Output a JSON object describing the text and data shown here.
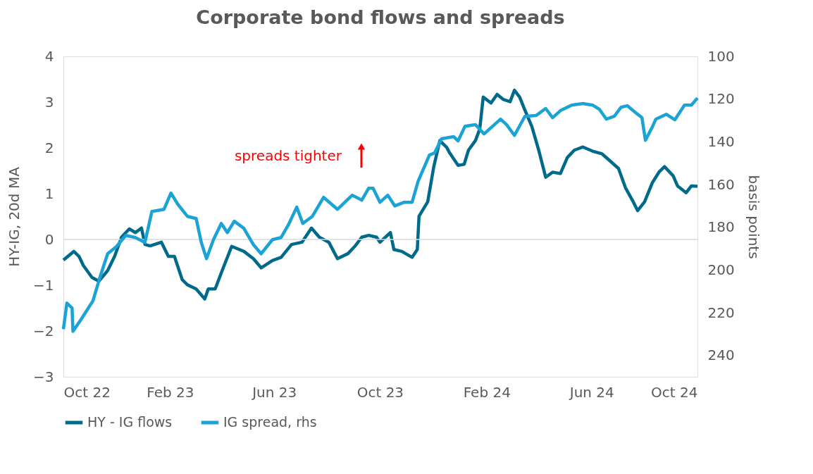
{
  "chart_data": {
    "type": "line",
    "title": "Corporate  bond flows and spreads",
    "ylabel": "HY-IG, 20d MA",
    "y2label": "basis points",
    "annotations": [
      "spreads tighter"
    ],
    "xlim": [
      "2022-10-01",
      "2024-10-01"
    ],
    "xticks": [
      {
        "value": "2022-10-01",
        "label": "Oct 22"
      },
      {
        "value": "2023-02-01",
        "label": "Feb 23"
      },
      {
        "value": "2023-06-01",
        "label": "Jun 23"
      },
      {
        "value": "2023-10-01",
        "label": "Oct 23"
      },
      {
        "value": "2024-02-01",
        "label": "Feb 24"
      },
      {
        "value": "2024-06-01",
        "label": "Jun 24"
      },
      {
        "value": "2024-10-01",
        "label": "Oct 24"
      }
    ],
    "ylim": [
      -3,
      4
    ],
    "yticks": [
      -3,
      -2,
      -1,
      0,
      1,
      2,
      3,
      4
    ],
    "y2lim": [
      250,
      100
    ],
    "y2ticks": [
      100,
      120,
      140,
      160,
      180,
      200,
      220,
      240
    ],
    "ref_lines": [
      {
        "axis": "y",
        "value": 0,
        "label": null,
        "color": "#d9d9d9"
      }
    ],
    "grid": false,
    "legend": "bottom",
    "line_style": "solid",
    "marker": "none",
    "series": [
      {
        "name": "HY - IG flows",
        "color": "#006a8a",
        "x": [
          "2022-10-01",
          "2022-10-13",
          "2022-10-19",
          "2022-10-24",
          "2022-11-03",
          "2022-11-11",
          "2022-11-21",
          "2022-11-29",
          "2022-12-07",
          "2022-12-16",
          "2022-12-23",
          "2022-12-30",
          "2023-01-03",
          "2023-01-09",
          "2023-01-22",
          "2023-01-30",
          "2023-02-06",
          "2023-02-15",
          "2023-02-21",
          "2023-03-03",
          "2023-03-13",
          "2023-03-17",
          "2023-03-25",
          "2023-04-02",
          "2023-04-13",
          "2023-04-27",
          "2023-05-08",
          "2023-05-17",
          "2023-05-30",
          "2023-06-09",
          "2023-06-21",
          "2023-07-03",
          "2023-07-14",
          "2023-07-23",
          "2023-08-03",
          "2023-08-13",
          "2023-08-25",
          "2023-09-02",
          "2023-09-10",
          "2023-09-18",
          "2023-09-27",
          "2023-10-01",
          "2023-10-13",
          "2023-10-17",
          "2023-10-26",
          "2023-11-07",
          "2023-11-13",
          "2023-11-15",
          "2023-11-25",
          "2023-12-02",
          "2023-12-09",
          "2023-12-17",
          "2023-12-20",
          "2023-12-30",
          "2024-01-06",
          "2024-01-11",
          "2024-01-19",
          "2024-01-24",
          "2024-01-28",
          "2024-02-06",
          "2024-02-13",
          "2024-02-20",
          "2024-02-28",
          "2024-03-04",
          "2024-03-10",
          "2024-03-16",
          "2024-03-24",
          "2024-04-01",
          "2024-04-09",
          "2024-04-17",
          "2024-04-26",
          "2024-05-04",
          "2024-05-12",
          "2024-05-22",
          "2024-06-02",
          "2024-06-13",
          "2024-06-22",
          "2024-07-02",
          "2024-07-10",
          "2024-07-19",
          "2024-07-24",
          "2024-08-01",
          "2024-08-10",
          "2024-08-18",
          "2024-08-24",
          "2024-09-03",
          "2024-09-08",
          "2024-09-18",
          "2024-09-24",
          "2024-10-01"
        ],
        "values": [
          -0.45,
          -0.26,
          -0.37,
          -0.57,
          -0.83,
          -0.91,
          -0.68,
          -0.37,
          0.05,
          0.23,
          0.15,
          0.25,
          -0.11,
          -0.14,
          -0.06,
          -0.37,
          -0.37,
          -0.88,
          -0.99,
          -1.08,
          -1.3,
          -1.08,
          -1.08,
          -0.68,
          -0.15,
          -0.26,
          -0.42,
          -0.62,
          -0.46,
          -0.39,
          -0.11,
          -0.06,
          0.25,
          0.05,
          -0.06,
          -0.42,
          -0.31,
          -0.15,
          0.05,
          0.09,
          0.05,
          -0.06,
          0.15,
          -0.22,
          -0.26,
          -0.39,
          -0.22,
          0.51,
          0.82,
          1.59,
          2.16,
          2.01,
          1.9,
          1.62,
          1.64,
          1.95,
          2.16,
          2.41,
          3.11,
          2.98,
          3.17,
          3.06,
          3.01,
          3.26,
          3.11,
          2.83,
          2.47,
          1.95,
          1.36,
          1.47,
          1.44,
          1.79,
          1.95,
          2.02,
          1.93,
          1.87,
          1.72,
          1.55,
          1.13,
          0.82,
          0.63,
          0.82,
          1.24,
          1.48,
          1.59,
          1.39,
          1.17,
          1.02,
          1.17,
          1.16
        ]
      },
      {
        "name": "IG spread, rhs",
        "color": "#1ba3d6",
        "axis": "y2",
        "x": [
          "2022-10-01",
          "2022-10-05",
          "2022-10-11",
          "2022-10-12",
          "2022-10-21",
          "2022-11-04",
          "2022-11-12",
          "2022-11-21",
          "2022-12-01",
          "2022-12-12",
          "2022-12-23",
          "2023-01-03",
          "2023-01-11",
          "2023-01-25",
          "2023-02-02",
          "2023-02-10",
          "2023-02-21",
          "2023-03-03",
          "2023-03-09",
          "2023-03-15",
          "2023-03-23",
          "2023-04-01",
          "2023-04-08",
          "2023-04-16",
          "2023-04-27",
          "2023-05-08",
          "2023-05-17",
          "2023-05-30",
          "2023-06-09",
          "2023-06-17",
          "2023-06-27",
          "2023-07-04",
          "2023-07-15",
          "2023-07-28",
          "2023-08-13",
          "2023-08-30",
          "2023-09-10",
          "2023-09-18",
          "2023-09-23",
          "2023-10-01",
          "2023-10-10",
          "2023-10-18",
          "2023-10-29",
          "2023-11-07",
          "2023-11-14",
          "2023-11-27",
          "2023-12-03",
          "2023-12-11",
          "2023-12-25",
          "2023-12-30",
          "2024-01-07",
          "2024-01-19",
          "2024-01-29",
          "2024-02-17",
          "2024-02-24",
          "2024-03-04",
          "2024-03-16",
          "2024-03-29",
          "2024-04-09",
          "2024-04-17",
          "2024-04-26",
          "2024-05-09",
          "2024-05-22",
          "2024-06-02",
          "2024-06-10",
          "2024-06-18",
          "2024-06-27",
          "2024-07-05",
          "2024-07-12",
          "2024-07-21",
          "2024-07-29",
          "2024-08-02",
          "2024-08-10",
          "2024-08-14",
          "2024-08-26",
          "2024-09-05",
          "2024-09-16",
          "2024-09-24",
          "2024-10-01"
        ],
        "values": [
          227.7,
          215.5,
          217.8,
          228.7,
          223.4,
          214.5,
          203.6,
          192.4,
          189.1,
          183.8,
          184.8,
          187.1,
          172.6,
          171.6,
          164.0,
          169.3,
          174.9,
          175.9,
          187.1,
          194.7,
          185.8,
          178.2,
          182.5,
          177.2,
          180.5,
          188.1,
          192.4,
          185.8,
          184.8,
          179.2,
          170.6,
          178.2,
          174.9,
          166.0,
          171.6,
          165.0,
          167.3,
          161.7,
          161.7,
          168.3,
          165.0,
          170.0,
          168.3,
          168.3,
          158.4,
          146.2,
          145.2,
          138.6,
          137.6,
          139.6,
          132.7,
          132.0,
          136.3,
          129.4,
          132.0,
          137.0,
          128.1,
          127.7,
          124.4,
          128.7,
          125.4,
          122.8,
          122.1,
          122.8,
          124.8,
          129.4,
          128.1,
          123.8,
          123.1,
          126.1,
          128.7,
          139.3,
          133.0,
          129.4,
          127.1,
          129.7,
          122.8,
          122.8,
          119.5
        ]
      }
    ]
  }
}
